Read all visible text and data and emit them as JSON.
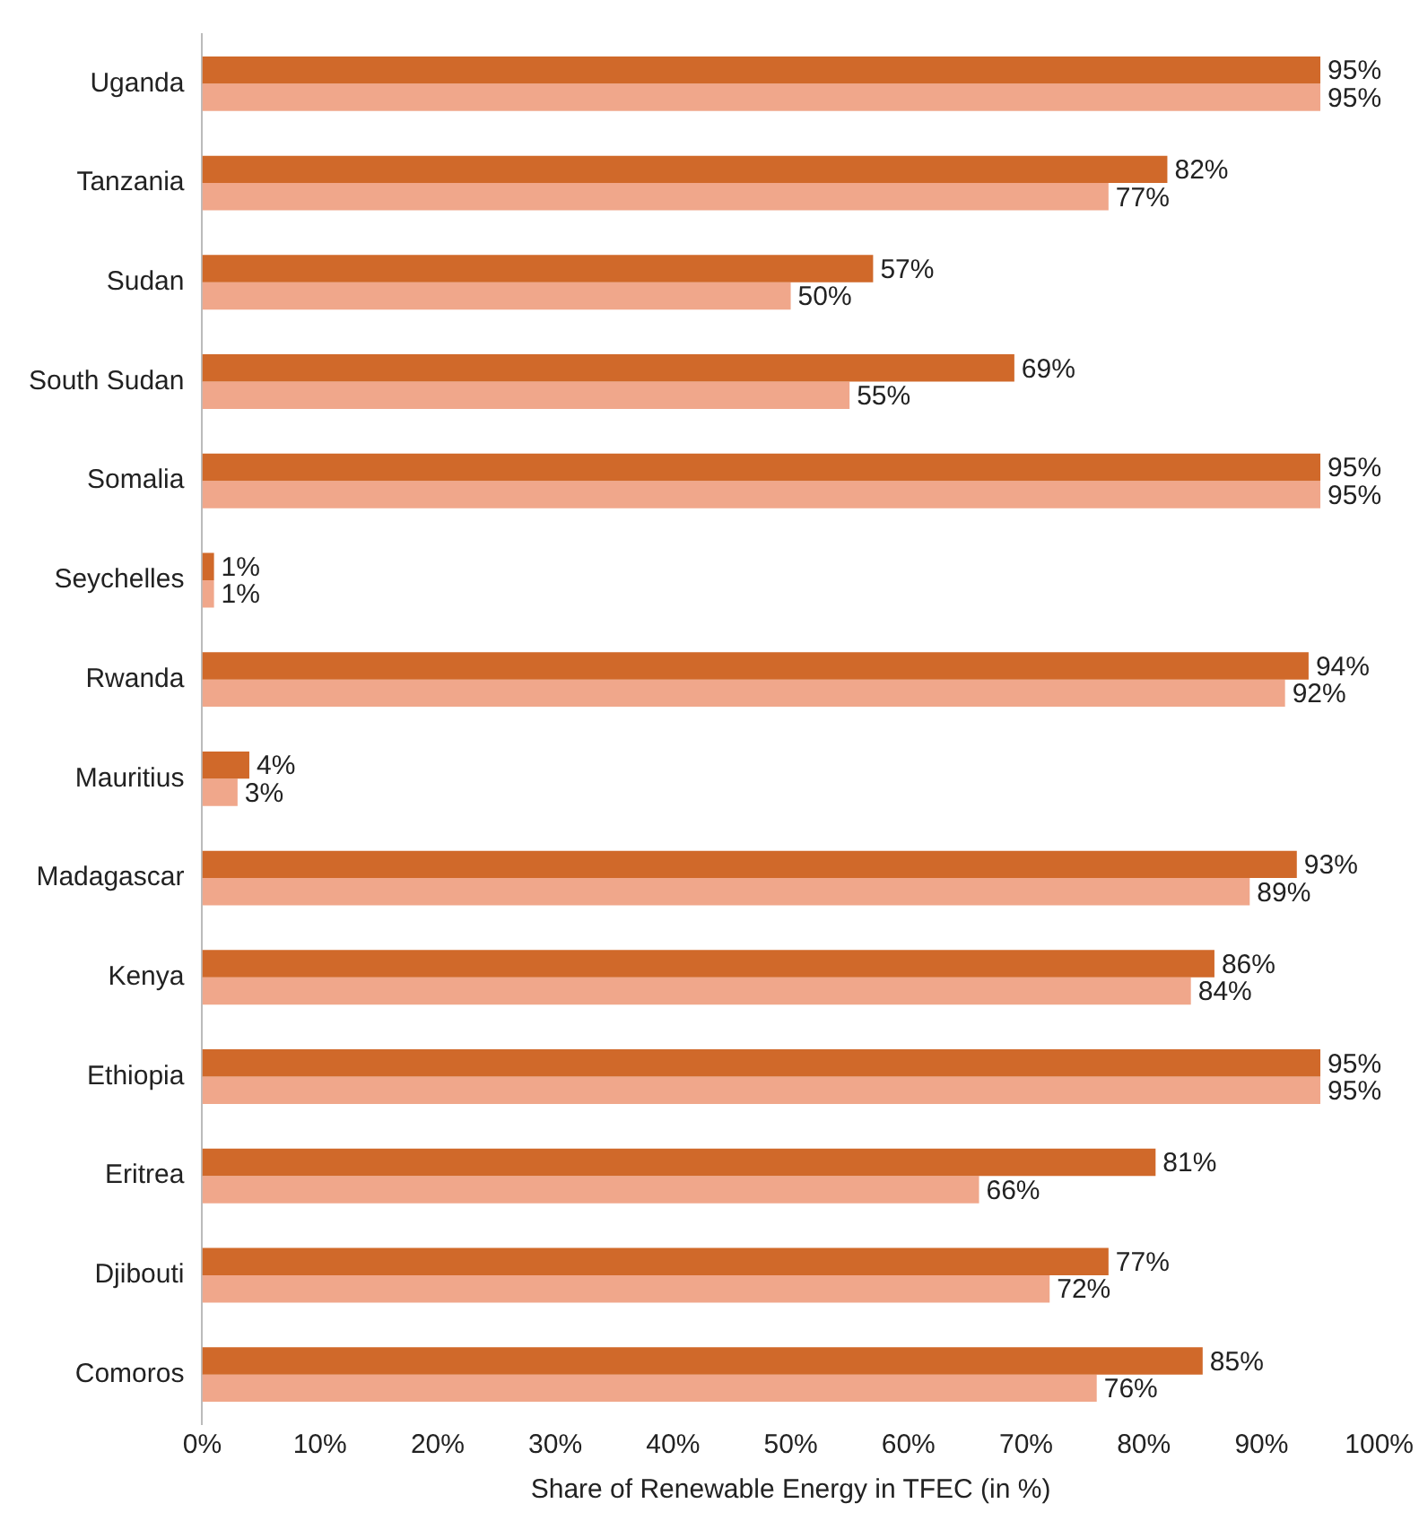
{
  "chart_data": {
    "type": "bar",
    "orientation": "horizontal",
    "xlabel": "Share of Renewable Energy in TFEC (in %)",
    "categories": [
      "Uganda",
      "Tanzania",
      "Sudan",
      "South Sudan",
      "Somalia",
      "Seychelles",
      "Rwanda",
      "Mauritius",
      "Madagascar",
      "Kenya",
      "Ethiopia",
      "Eritrea",
      "Djibouti",
      "Comoros"
    ],
    "series": [
      {
        "color": "#d0692a",
        "values": [
          95,
          82,
          57,
          69,
          95,
          1,
          94,
          4,
          93,
          86,
          95,
          81,
          77,
          85
        ],
        "value_labels": [
          "95%",
          "82%",
          "57%",
          "69%",
          "95%",
          "1%",
          "94%",
          "4%",
          "93%",
          "86%",
          "95%",
          "81%",
          "77%",
          "85%"
        ]
      },
      {
        "color": "#f0a78b",
        "values": [
          95,
          77,
          50,
          55,
          95,
          1,
          92,
          3,
          89,
          84,
          95,
          66,
          72,
          76
        ],
        "value_labels": [
          "95%",
          "77%",
          "50%",
          "55%",
          "95%",
          "1%",
          "92%",
          "3%",
          "89%",
          "84%",
          "95%",
          "66%",
          "72%",
          "76%"
        ]
      }
    ],
    "xlim": [
      0,
      100
    ],
    "xticks": [
      {
        "value": 0,
        "label": "0%"
      },
      {
        "value": 10,
        "label": "10%"
      },
      {
        "value": 20,
        "label": "20%"
      },
      {
        "value": 30,
        "label": "30%"
      },
      {
        "value": 40,
        "label": "40%"
      },
      {
        "value": 50,
        "label": "50%"
      },
      {
        "value": 60,
        "label": "60%"
      },
      {
        "value": 70,
        "label": "70%"
      },
      {
        "value": 80,
        "label": "80%"
      },
      {
        "value": 90,
        "label": "90%"
      },
      {
        "value": 100,
        "label": "100%"
      }
    ],
    "grid": false,
    "legend": false
  }
}
